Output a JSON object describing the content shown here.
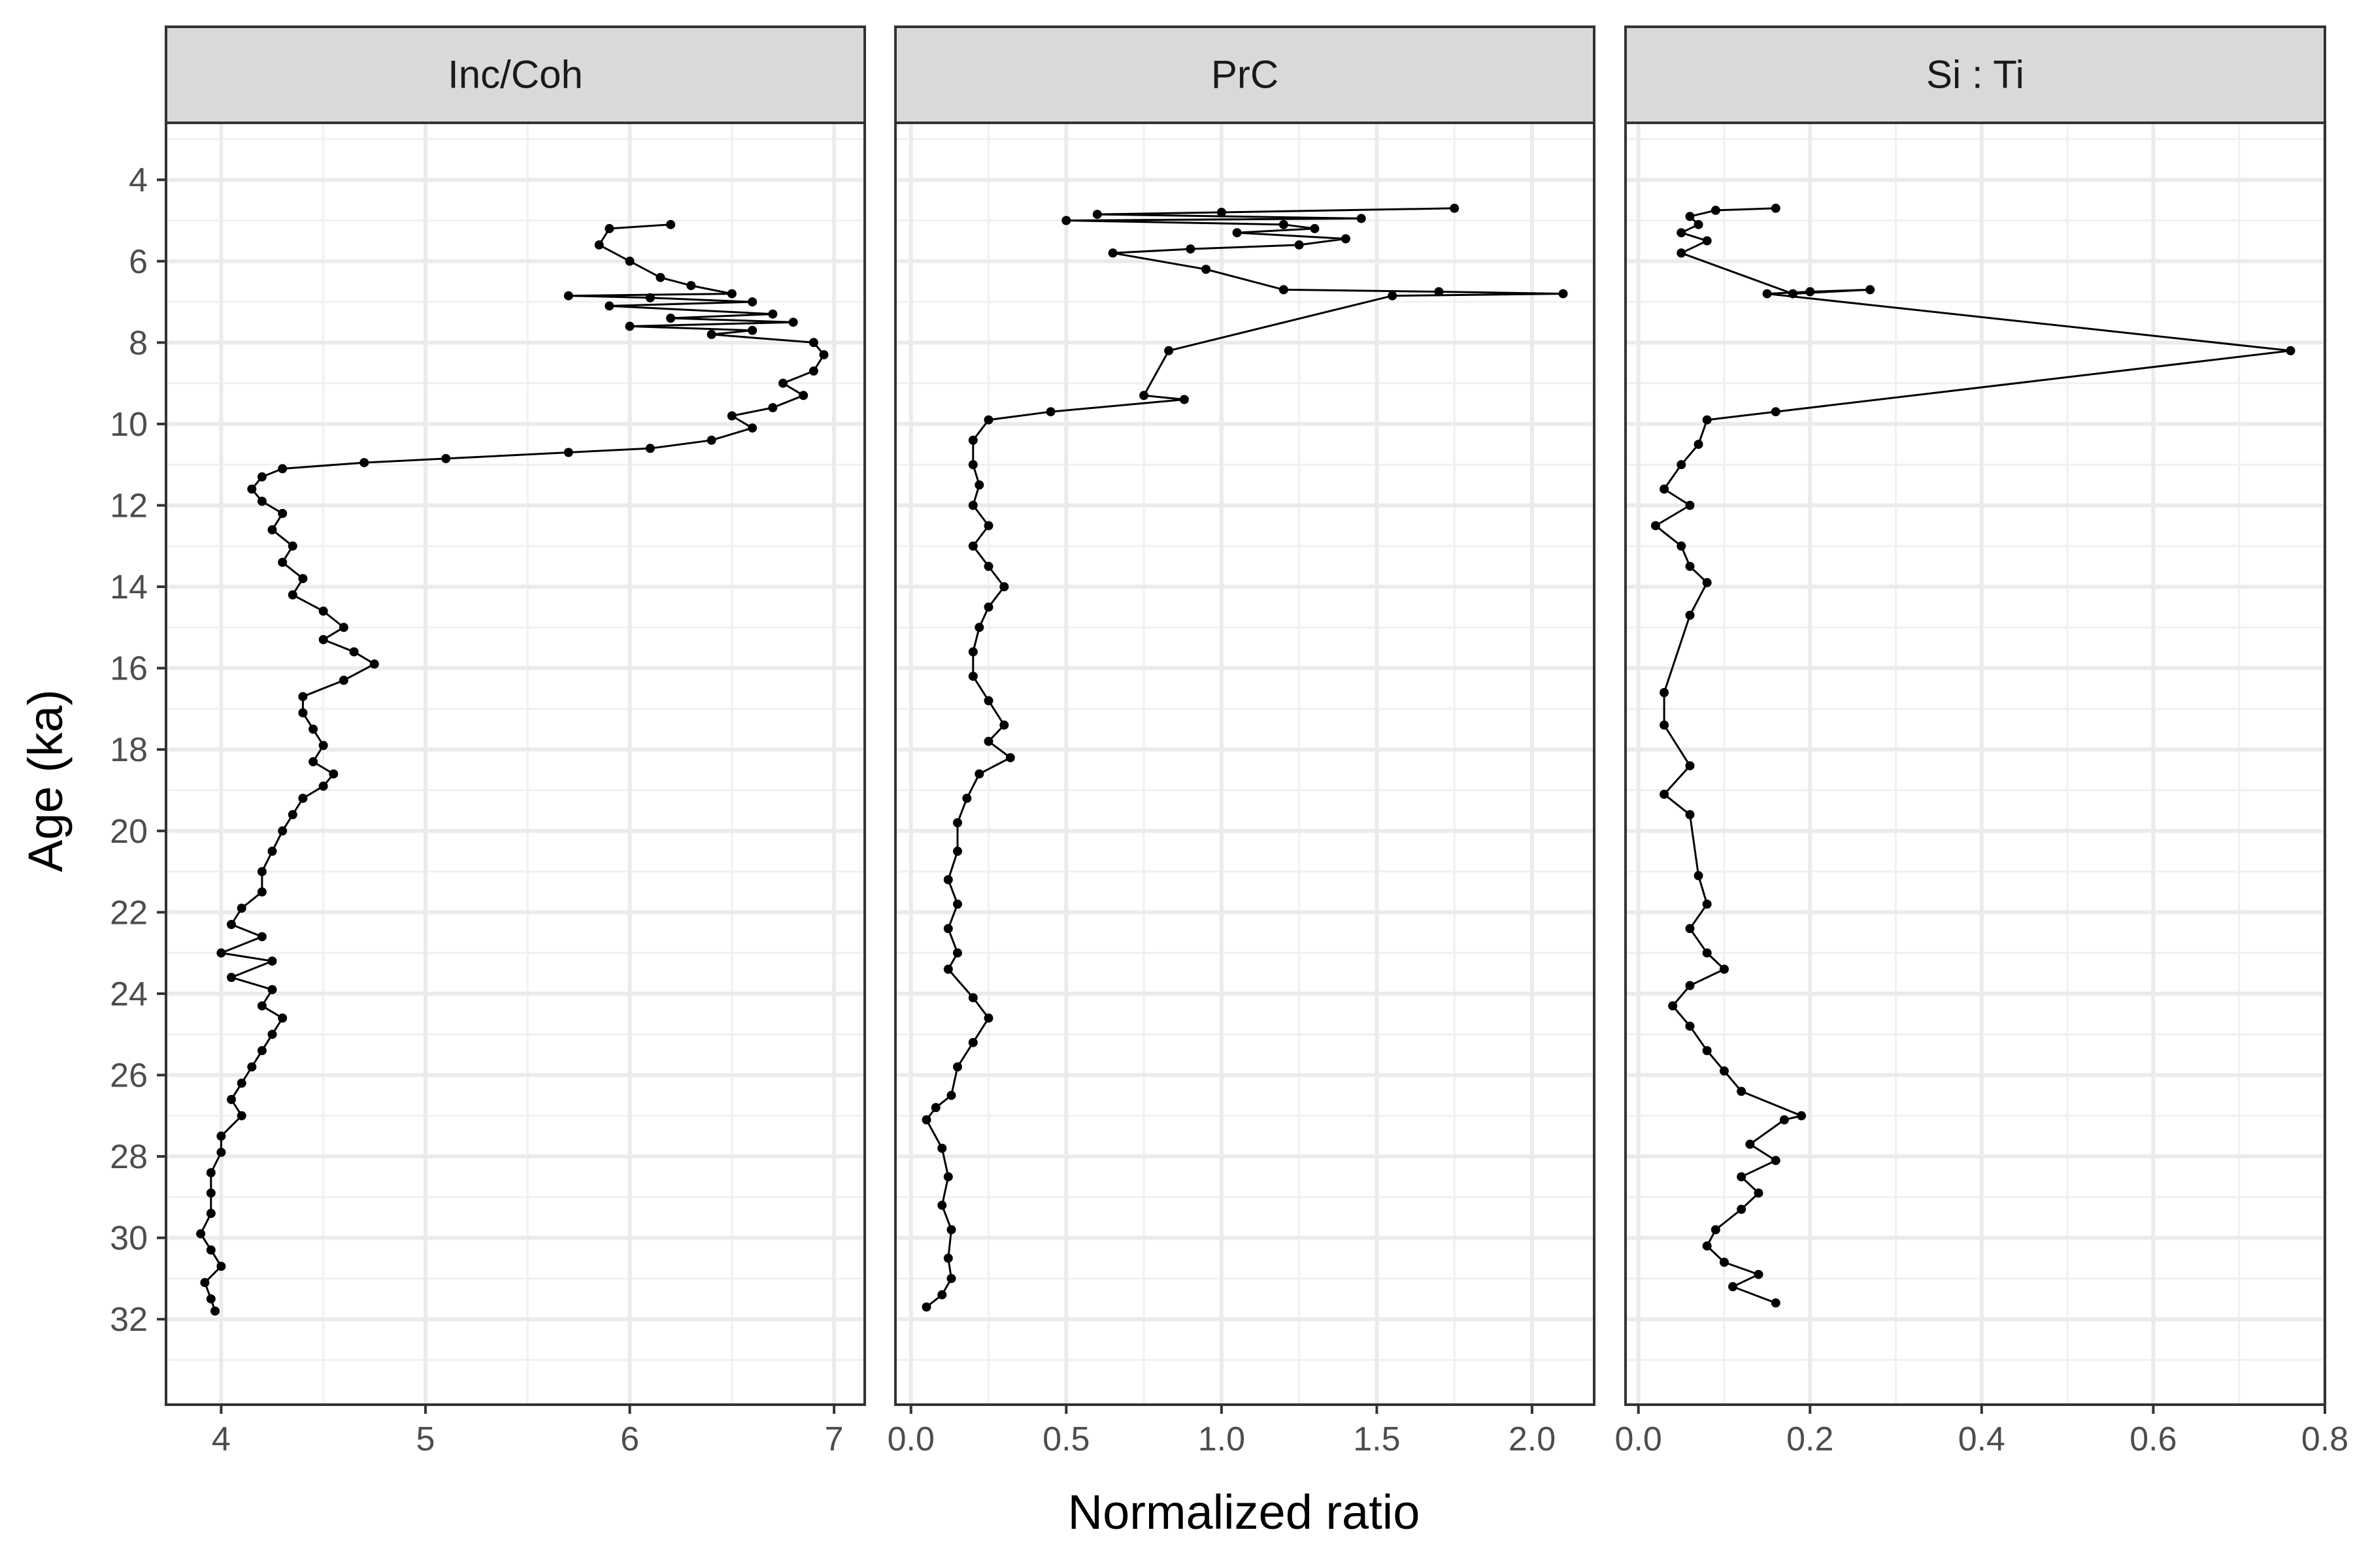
{
  "chart_data": {
    "type": "scatter",
    "xlabel": "Normalized ratio",
    "ylabel": "Age (ka)",
    "y_reversed": true,
    "y_ticks": [
      4,
      6,
      8,
      10,
      12,
      14,
      16,
      18,
      20,
      22,
      24,
      26,
      28,
      30,
      32
    ],
    "ylim": [
      2.6,
      34.1
    ],
    "grid": true,
    "panels": [
      {
        "name": "Inc/Coh",
        "xlim": [
          3.73,
          7.15
        ],
        "x_ticks": [
          4,
          5,
          6,
          7
        ],
        "x_tick_labels": [
          "4",
          "5",
          "6",
          "7"
        ],
        "points": [
          [
            6.2,
            5.1
          ],
          [
            5.9,
            5.2
          ],
          [
            5.85,
            5.6
          ],
          [
            6.0,
            6.0
          ],
          [
            6.15,
            6.4
          ],
          [
            6.3,
            6.6
          ],
          [
            6.5,
            6.8
          ],
          [
            5.7,
            6.85
          ],
          [
            6.1,
            6.9
          ],
          [
            6.6,
            7.0
          ],
          [
            5.9,
            7.1
          ],
          [
            6.7,
            7.3
          ],
          [
            6.2,
            7.4
          ],
          [
            6.8,
            7.5
          ],
          [
            6.0,
            7.6
          ],
          [
            6.6,
            7.7
          ],
          [
            6.4,
            7.8
          ],
          [
            6.9,
            8.0
          ],
          [
            6.95,
            8.3
          ],
          [
            6.9,
            8.7
          ],
          [
            6.75,
            9.0
          ],
          [
            6.85,
            9.3
          ],
          [
            6.7,
            9.6
          ],
          [
            6.5,
            9.8
          ],
          [
            6.6,
            10.1
          ],
          [
            6.4,
            10.4
          ],
          [
            6.1,
            10.6
          ],
          [
            5.7,
            10.7
          ],
          [
            5.1,
            10.85
          ],
          [
            4.7,
            10.95
          ],
          [
            4.3,
            11.1
          ],
          [
            4.2,
            11.3
          ],
          [
            4.15,
            11.6
          ],
          [
            4.2,
            11.9
          ],
          [
            4.3,
            12.2
          ],
          [
            4.25,
            12.6
          ],
          [
            4.35,
            13.0
          ],
          [
            4.3,
            13.4
          ],
          [
            4.4,
            13.8
          ],
          [
            4.35,
            14.2
          ],
          [
            4.5,
            14.6
          ],
          [
            4.6,
            15.0
          ],
          [
            4.5,
            15.3
          ],
          [
            4.65,
            15.6
          ],
          [
            4.75,
            15.9
          ],
          [
            4.6,
            16.3
          ],
          [
            4.4,
            16.7
          ],
          [
            4.4,
            17.1
          ],
          [
            4.45,
            17.5
          ],
          [
            4.5,
            17.9
          ],
          [
            4.45,
            18.3
          ],
          [
            4.55,
            18.6
          ],
          [
            4.5,
            18.9
          ],
          [
            4.4,
            19.2
          ],
          [
            4.35,
            19.6
          ],
          [
            4.3,
            20.0
          ],
          [
            4.25,
            20.5
          ],
          [
            4.2,
            21.0
          ],
          [
            4.2,
            21.5
          ],
          [
            4.1,
            21.9
          ],
          [
            4.05,
            22.3
          ],
          [
            4.2,
            22.6
          ],
          [
            4.0,
            23.0
          ],
          [
            4.25,
            23.2
          ],
          [
            4.05,
            23.6
          ],
          [
            4.25,
            23.9
          ],
          [
            4.2,
            24.3
          ],
          [
            4.3,
            24.6
          ],
          [
            4.25,
            25.0
          ],
          [
            4.2,
            25.4
          ],
          [
            4.15,
            25.8
          ],
          [
            4.1,
            26.2
          ],
          [
            4.05,
            26.6
          ],
          [
            4.1,
            27.0
          ],
          [
            4.0,
            27.5
          ],
          [
            4.0,
            27.9
          ],
          [
            3.95,
            28.4
          ],
          [
            3.95,
            28.9
          ],
          [
            3.95,
            29.4
          ],
          [
            3.9,
            29.9
          ],
          [
            3.95,
            30.3
          ],
          [
            4.0,
            30.7
          ],
          [
            3.92,
            31.1
          ],
          [
            3.95,
            31.5
          ],
          [
            3.97,
            31.8
          ]
        ]
      },
      {
        "name": "PrC",
        "xlim": [
          -0.05,
          2.2
        ],
        "x_ticks": [
          0.0,
          0.5,
          1.0,
          1.5,
          2.0
        ],
        "x_tick_labels": [
          "0.0",
          "0.5",
          "1.0",
          "1.5",
          "2.0"
        ],
        "points": [
          [
            1.75,
            4.7
          ],
          [
            1.0,
            4.8
          ],
          [
            0.6,
            4.85
          ],
          [
            1.45,
            4.95
          ],
          [
            0.5,
            5.0
          ],
          [
            1.2,
            5.1
          ],
          [
            1.3,
            5.2
          ],
          [
            1.05,
            5.3
          ],
          [
            1.4,
            5.45
          ],
          [
            1.25,
            5.6
          ],
          [
            0.9,
            5.7
          ],
          [
            0.65,
            5.8
          ],
          [
            0.95,
            6.2
          ],
          [
            1.2,
            6.7
          ],
          [
            1.7,
            6.75
          ],
          [
            2.1,
            6.8
          ],
          [
            1.55,
            6.85
          ],
          [
            0.83,
            8.2
          ],
          [
            0.75,
            9.3
          ],
          [
            0.88,
            9.4
          ],
          [
            0.45,
            9.7
          ],
          [
            0.25,
            9.9
          ],
          [
            0.2,
            10.4
          ],
          [
            0.2,
            11.0
          ],
          [
            0.22,
            11.5
          ],
          [
            0.2,
            12.0
          ],
          [
            0.25,
            12.5
          ],
          [
            0.2,
            13.0
          ],
          [
            0.25,
            13.5
          ],
          [
            0.3,
            14.0
          ],
          [
            0.25,
            14.5
          ],
          [
            0.22,
            15.0
          ],
          [
            0.2,
            15.6
          ],
          [
            0.2,
            16.2
          ],
          [
            0.25,
            16.8
          ],
          [
            0.3,
            17.4
          ],
          [
            0.25,
            17.8
          ],
          [
            0.32,
            18.2
          ],
          [
            0.22,
            18.6
          ],
          [
            0.18,
            19.2
          ],
          [
            0.15,
            19.8
          ],
          [
            0.15,
            20.5
          ],
          [
            0.12,
            21.2
          ],
          [
            0.15,
            21.8
          ],
          [
            0.12,
            22.4
          ],
          [
            0.15,
            23.0
          ],
          [
            0.12,
            23.4
          ],
          [
            0.2,
            24.1
          ],
          [
            0.25,
            24.6
          ],
          [
            0.2,
            25.2
          ],
          [
            0.15,
            25.8
          ],
          [
            0.13,
            26.5
          ],
          [
            0.08,
            26.8
          ],
          [
            0.05,
            27.1
          ],
          [
            0.1,
            27.8
          ],
          [
            0.12,
            28.5
          ],
          [
            0.1,
            29.2
          ],
          [
            0.13,
            29.8
          ],
          [
            0.12,
            30.5
          ],
          [
            0.13,
            31.0
          ],
          [
            0.1,
            31.4
          ],
          [
            0.05,
            31.7
          ]
        ]
      },
      {
        "name": "Si : Ti",
        "xlim": [
          -0.015,
          0.8
        ],
        "x_ticks": [
          0.0,
          0.2,
          0.4,
          0.6,
          0.8
        ],
        "x_tick_labels": [
          "0.0",
          "0.2",
          "0.4",
          "0.6",
          "0.8"
        ],
        "points": [
          [
            0.16,
            4.7
          ],
          [
            0.09,
            4.75
          ],
          [
            0.06,
            4.9
          ],
          [
            0.07,
            5.1
          ],
          [
            0.05,
            5.3
          ],
          [
            0.08,
            5.5
          ],
          [
            0.05,
            5.8
          ],
          [
            0.18,
            6.8
          ],
          [
            0.27,
            6.7
          ],
          [
            0.2,
            6.75
          ],
          [
            0.15,
            6.8
          ],
          [
            0.76,
            8.2
          ],
          [
            0.16,
            9.7
          ],
          [
            0.08,
            9.9
          ],
          [
            0.07,
            10.5
          ],
          [
            0.05,
            11.0
          ],
          [
            0.03,
            11.6
          ],
          [
            0.06,
            12.0
          ],
          [
            0.02,
            12.5
          ],
          [
            0.05,
            13.0
          ],
          [
            0.06,
            13.5
          ],
          [
            0.08,
            13.9
          ],
          [
            0.06,
            14.7
          ],
          [
            0.03,
            16.6
          ],
          [
            0.03,
            17.4
          ],
          [
            0.06,
            18.4
          ],
          [
            0.03,
            19.1
          ],
          [
            0.06,
            19.6
          ],
          [
            0.07,
            21.1
          ],
          [
            0.08,
            21.8
          ],
          [
            0.06,
            22.4
          ],
          [
            0.08,
            23.0
          ],
          [
            0.1,
            23.4
          ],
          [
            0.06,
            23.8
          ],
          [
            0.04,
            24.3
          ],
          [
            0.06,
            24.8
          ],
          [
            0.08,
            25.4
          ],
          [
            0.1,
            25.9
          ],
          [
            0.12,
            26.4
          ],
          [
            0.19,
            27.0
          ],
          [
            0.17,
            27.1
          ],
          [
            0.13,
            27.7
          ],
          [
            0.16,
            28.1
          ],
          [
            0.12,
            28.5
          ],
          [
            0.14,
            28.9
          ],
          [
            0.12,
            29.3
          ],
          [
            0.09,
            29.8
          ],
          [
            0.08,
            30.2
          ],
          [
            0.1,
            30.6
          ],
          [
            0.14,
            30.9
          ],
          [
            0.11,
            31.2
          ],
          [
            0.16,
            31.6
          ]
        ]
      }
    ]
  }
}
